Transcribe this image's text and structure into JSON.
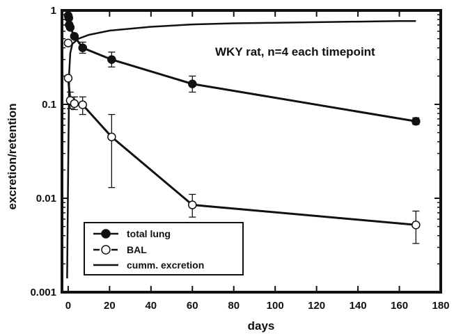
{
  "chart_data": {
    "type": "scatter",
    "title": "",
    "xlabel": "days",
    "ylabel": "excretion/retention",
    "xlim": [
      -3,
      180
    ],
    "ylim": [
      0.001,
      1
    ],
    "yscale": "log",
    "grid": false,
    "legend_position": "bottom-left",
    "x_ticks": [
      0,
      20,
      40,
      60,
      80,
      100,
      120,
      140,
      160,
      180
    ],
    "x_tick_labels": [
      "0",
      "20",
      "40",
      "60",
      "80",
      "100",
      "120",
      "140",
      "160",
      "180"
    ],
    "y_ticks": [
      0.001,
      0.01,
      0.1,
      1
    ],
    "y_tick_labels": [
      "0.001",
      "0.01",
      "0.1",
      "1"
    ],
    "annotation": "WKY rat, n=4 each timepoint",
    "series": [
      {
        "name": "total lung",
        "marker": "filled-circle",
        "points": [
          {
            "x": 0,
            "y": 0.88,
            "err": null
          },
          {
            "x": 0.3,
            "y": 0.83,
            "err": null
          },
          {
            "x": 0.5,
            "y": 0.7,
            "err": null
          },
          {
            "x": 1,
            "y": 0.66,
            "err": null
          },
          {
            "x": 3,
            "y": 0.53,
            "err": null
          },
          {
            "x": 7,
            "y": 0.4,
            "err": [
              0.35,
              0.46
            ]
          },
          {
            "x": 21,
            "y": 0.3,
            "err": [
              0.25,
              0.36
            ]
          },
          {
            "x": 60,
            "y": 0.165,
            "err": [
              0.135,
              0.2
            ]
          },
          {
            "x": 168,
            "y": 0.066,
            "err": [
              0.061,
              0.072
            ]
          }
        ]
      },
      {
        "name": "BAL",
        "marker": "open-circle",
        "points": [
          {
            "x": 0,
            "y": 0.45,
            "err": null
          },
          {
            "x": 0,
            "y": 0.19,
            "err": null
          },
          {
            "x": 1,
            "y": 0.11,
            "err": [
              0.09,
              0.135
            ]
          },
          {
            "x": 3,
            "y": 0.102,
            "err": [
              0.088,
              0.12
            ]
          },
          {
            "x": 7,
            "y": 0.099,
            "err": [
              0.078,
              0.12
            ]
          },
          {
            "x": 21,
            "y": 0.045,
            "err": [
              0.013,
              0.078
            ]
          },
          {
            "x": 60,
            "y": 0.0085,
            "err": [
              0.0063,
              0.011
            ]
          },
          {
            "x": 168,
            "y": 0.0052,
            "err": [
              0.0033,
              0.0073
            ]
          }
        ]
      },
      {
        "name": "cumm. excretion",
        "marker": "line",
        "points": [
          {
            "x": -0.5,
            "y": 0.0014
          },
          {
            "x": 0,
            "y": 0.02
          },
          {
            "x": 0.5,
            "y": 0.22
          },
          {
            "x": 1,
            "y": 0.35
          },
          {
            "x": 2,
            "y": 0.44
          },
          {
            "x": 5,
            "y": 0.5
          },
          {
            "x": 10,
            "y": 0.55
          },
          {
            "x": 20,
            "y": 0.61
          },
          {
            "x": 40,
            "y": 0.67
          },
          {
            "x": 60,
            "y": 0.71
          },
          {
            "x": 80,
            "y": 0.73
          },
          {
            "x": 100,
            "y": 0.74
          },
          {
            "x": 120,
            "y": 0.75
          },
          {
            "x": 140,
            "y": 0.76
          },
          {
            "x": 160,
            "y": 0.77
          },
          {
            "x": 168,
            "y": 0.77
          }
        ]
      }
    ]
  }
}
